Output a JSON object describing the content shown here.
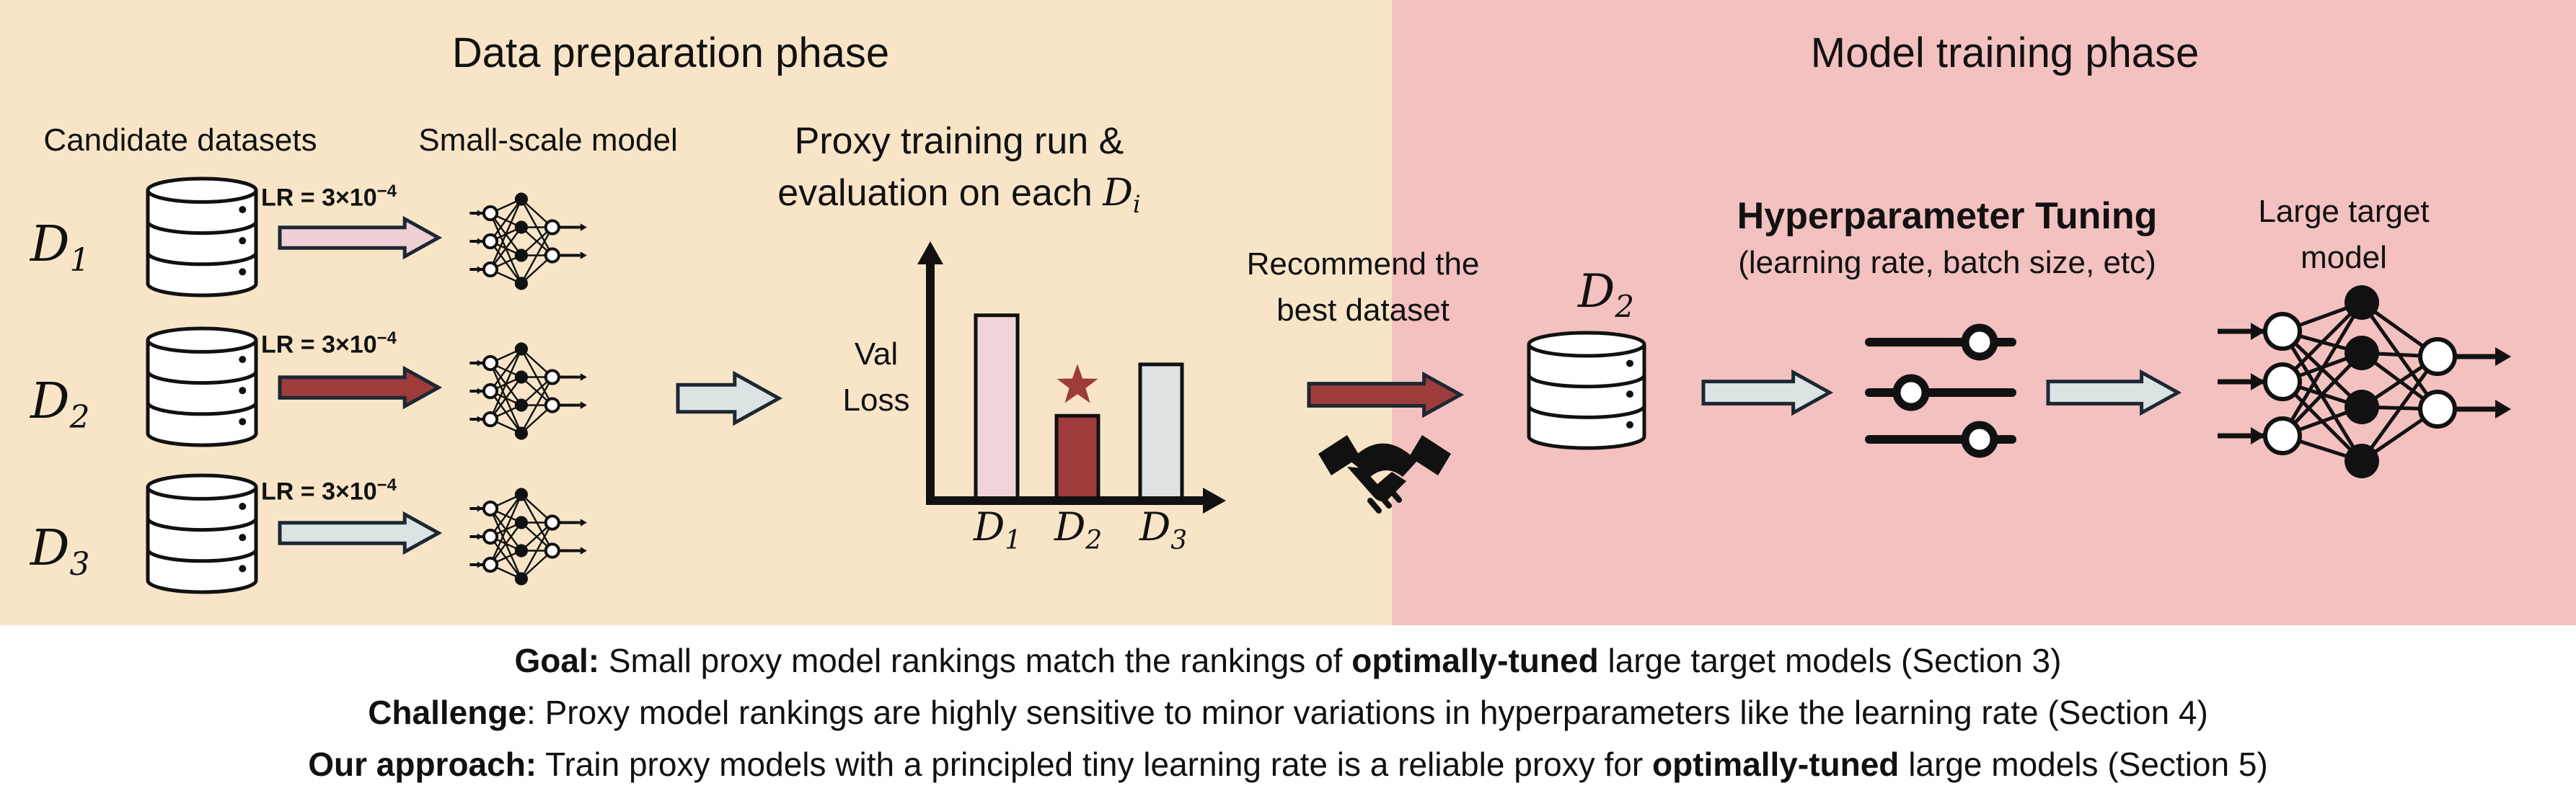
{
  "phases": {
    "prep": {
      "title": "Data preparation phase"
    },
    "train": {
      "title": "Model training phase"
    }
  },
  "prep": {
    "candidate_label": "Candidate datasets",
    "small_model_label": "Small-scale model",
    "datasets": [
      {
        "sym": "D",
        "sub": "1",
        "lr_prefix": "LR = 3×10",
        "lr_exp": "−4"
      },
      {
        "sym": "D",
        "sub": "2",
        "lr_prefix": "LR = 3×10",
        "lr_exp": "−4"
      },
      {
        "sym": "D",
        "sub": "3",
        "lr_prefix": "LR = 3×10",
        "lr_exp": "−4"
      }
    ],
    "proxy_title_1": "Proxy training run &",
    "proxy_title_2": "evaluation on each",
    "proxy_title_sym": "D",
    "proxy_title_sub": "i"
  },
  "chart_data": {
    "type": "bar",
    "title": "",
    "ylabel": "Val Loss",
    "ylabel_lines": [
      "Val",
      "Loss"
    ],
    "xlabel": "",
    "categories": [
      "D1",
      "D2",
      "D3"
    ],
    "category_labels": [
      {
        "sym": "D",
        "sub": "1"
      },
      {
        "sym": "D",
        "sub": "2"
      },
      {
        "sym": "D",
        "sub": "3"
      }
    ],
    "values": [
      0.83,
      0.38,
      0.61
    ],
    "ylim": [
      0,
      1
    ],
    "best_index": 1,
    "best_marker": "star",
    "bar_colors": [
      "#f0d5d8",
      "#9e3b3b",
      "#dde3e3"
    ],
    "axis_ticks": "none",
    "grid": false
  },
  "recommend": {
    "line1": "Recommend the",
    "line2": "best dataset",
    "icon": "handshake-icon"
  },
  "train": {
    "selected_sym": "D",
    "selected_sub": "2",
    "tuning_title": "Hyperparameter Tuning",
    "tuning_sub": "(learning rate, batch size, etc)",
    "target_line1": "Large target",
    "target_line2": "model",
    "tuning_icon": "sliders-icon"
  },
  "caption": {
    "goal_bold": "Goal:",
    "goal_1": " Small proxy model rankings match the rankings of ",
    "goal_bold2": "optimally-tuned",
    "goal_2": " large target models (Section 3)",
    "challenge_bold": "Challenge",
    "challenge_text": ": Proxy model rankings are highly sensitive to minor variations in hyperparameters like the learning rate (Section 4)",
    "approach_bold": "Our approach:",
    "approach_1": " Train proxy models with a principled tiny learning rate is a reliable proxy for ",
    "approach_bold2": "optimally-tuned",
    "approach_2": " large models (Section 5)"
  },
  "colors": {
    "prep_bg": "#f8e5c8",
    "train_bg": "#f3c1bf",
    "arrow_pink": "#efd0d4",
    "arrow_dark": "#9e3b3b",
    "arrow_light": "#dce3e3",
    "outline": "#111111"
  }
}
